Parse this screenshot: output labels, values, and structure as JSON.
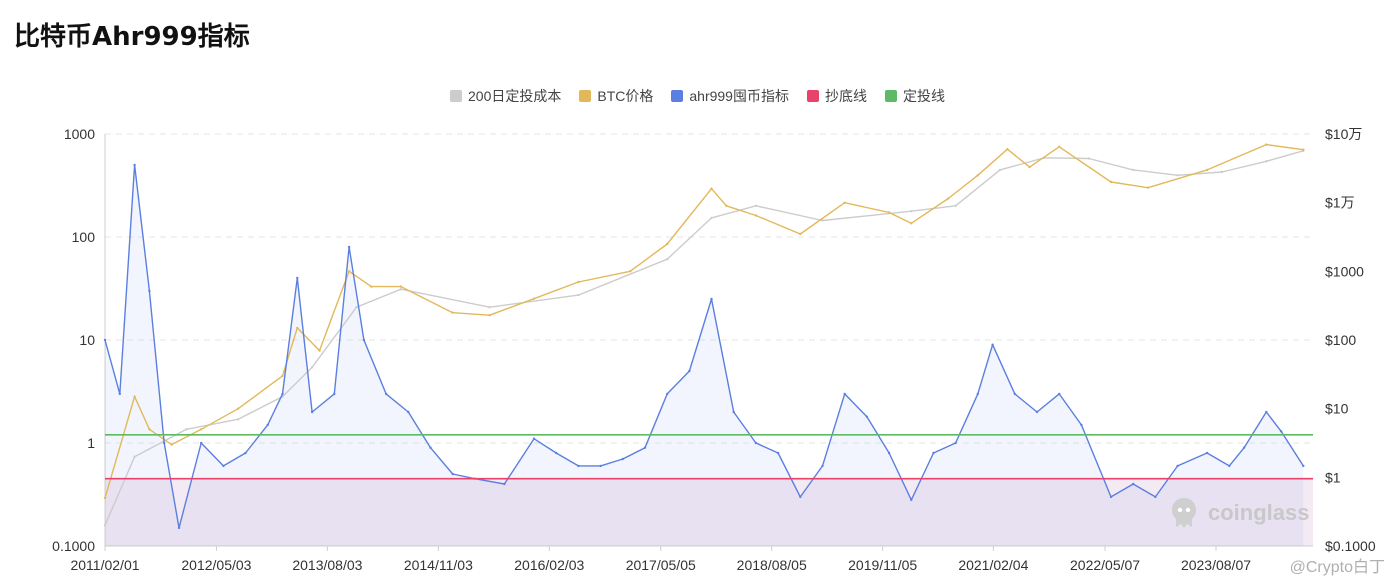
{
  "page": {
    "title": "比特币Ahr999指标"
  },
  "legend": {
    "items": [
      {
        "label": "200日定投成本",
        "color": "#cccccc"
      },
      {
        "label": "BTC价格",
        "color": "#e3b85a"
      },
      {
        "label": "ahr999囤币指标",
        "color": "#5b7fe0"
      },
      {
        "label": "抄底线",
        "color": "#e8426b"
      },
      {
        "label": "定投线",
        "color": "#5dbb63"
      }
    ]
  },
  "watermark": {
    "text": "coinglass"
  },
  "credit": {
    "text": "@Crypto白丁"
  },
  "chart_data": {
    "type": "line",
    "title": "比特币Ahr999指标",
    "x_tick_labels": [
      "2011/02/01",
      "2012/05/03",
      "2013/08/03",
      "2014/11/03",
      "2016/02/03",
      "2017/05/05",
      "2018/08/05",
      "2019/11/05",
      "2021/02/04",
      "2022/05/07",
      "2023/08/07"
    ],
    "y_left": {
      "scale": "log",
      "range": [
        0.1,
        1000
      ],
      "tick_labels": [
        "0.1000",
        "1",
        "10",
        "100",
        "1000"
      ]
    },
    "y_right": {
      "scale": "log",
      "range": [
        0.1,
        100000
      ],
      "tick_labels": [
        "$0.1000",
        "$1",
        "$10",
        "$100",
        "$1000",
        "$1万",
        "$10万"
      ]
    },
    "grid": true,
    "legend_position": "top-center",
    "reference_lines": [
      {
        "name": "定投线",
        "value": 1.2,
        "axis": "left",
        "color": "#5dbb63"
      },
      {
        "name": "抄底线",
        "value": 0.45,
        "axis": "left",
        "color": "#e8426b"
      }
    ],
    "series": [
      {
        "name": "ahr999囤币指标",
        "axis": "left",
        "color": "#5b7fe0",
        "x": [
          "2011/02",
          "2011/04",
          "2011/06",
          "2011/08",
          "2011/10",
          "2011/12",
          "2012/03",
          "2012/06",
          "2012/09",
          "2012/12",
          "2013/02",
          "2013/04",
          "2013/06",
          "2013/09",
          "2013/11",
          "2014/01",
          "2014/04",
          "2014/07",
          "2014/10",
          "2015/01",
          "2015/04",
          "2015/08",
          "2015/12",
          "2016/03",
          "2016/06",
          "2016/09",
          "2016/12",
          "2017/03",
          "2017/06",
          "2017/09",
          "2017/12",
          "2018/03",
          "2018/06",
          "2018/09",
          "2018/12",
          "2019/03",
          "2019/06",
          "2019/09",
          "2019/12",
          "2020/03",
          "2020/06",
          "2020/09",
          "2020/12",
          "2021/02",
          "2021/05",
          "2021/08",
          "2021/11",
          "2022/02",
          "2022/06",
          "2022/09",
          "2022/12",
          "2023/03",
          "2023/07",
          "2023/10",
          "2023/12",
          "2024/03",
          "2024/05",
          "2024/08"
        ],
        "values": [
          10,
          3,
          500,
          30,
          1,
          0.15,
          1,
          0.6,
          0.8,
          1.5,
          3,
          40,
          2,
          3,
          80,
          10,
          3,
          2,
          0.9,
          0.5,
          0.45,
          0.4,
          1.1,
          0.8,
          0.6,
          0.6,
          0.7,
          0.9,
          3,
          5,
          25,
          2,
          1,
          0.8,
          0.3,
          0.6,
          3,
          1.8,
          0.8,
          0.28,
          0.8,
          1,
          3,
          9,
          3,
          2,
          3,
          1.5,
          0.3,
          0.4,
          0.3,
          0.6,
          0.8,
          0.6,
          0.9,
          2,
          1.3,
          0.6
        ]
      },
      {
        "name": "BTC价格",
        "axis": "right",
        "color": "#e3b85a",
        "x": [
          "2011/02",
          "2011/06",
          "2011/08",
          "2011/11",
          "2012/03",
          "2012/08",
          "2013/02",
          "2013/04",
          "2013/07",
          "2013/11",
          "2014/02",
          "2014/06",
          "2015/01",
          "2015/06",
          "2015/12",
          "2016/06",
          "2017/01",
          "2017/06",
          "2017/12",
          "2018/02",
          "2018/06",
          "2018/12",
          "2019/06",
          "2019/12",
          "2020/03",
          "2020/08",
          "2020/12",
          "2021/04",
          "2021/07",
          "2021/11",
          "2022/06",
          "2022/11",
          "2023/07",
          "2024/03",
          "2024/08"
        ],
        "values": [
          0.5,
          15,
          5,
          3,
          5,
          10,
          30,
          150,
          70,
          1000,
          600,
          600,
          250,
          230,
          400,
          700,
          1000,
          2500,
          16000,
          9000,
          6500,
          3500,
          10000,
          7200,
          5000,
          11500,
          25000,
          60000,
          33000,
          65000,
          20000,
          16500,
          30000,
          70000,
          59000
        ]
      },
      {
        "name": "200日定投成本",
        "axis": "right",
        "color": "#cccccc",
        "x": [
          "2011/02",
          "2011/06",
          "2012/01",
          "2012/08",
          "2013/02",
          "2013/06",
          "2013/12",
          "2014/06",
          "2015/06",
          "2016/06",
          "2017/06",
          "2017/12",
          "2018/06",
          "2019/03",
          "2020/03",
          "2020/09",
          "2021/03",
          "2021/09",
          "2022/03",
          "2022/09",
          "2023/03",
          "2023/09",
          "2024/03",
          "2024/08"
        ],
        "values": [
          0.2,
          2,
          5,
          7,
          15,
          40,
          300,
          550,
          300,
          450,
          1500,
          6000,
          9000,
          5500,
          7500,
          9000,
          30000,
          45000,
          44000,
          30000,
          25000,
          28000,
          40000,
          57000
        ]
      }
    ]
  }
}
